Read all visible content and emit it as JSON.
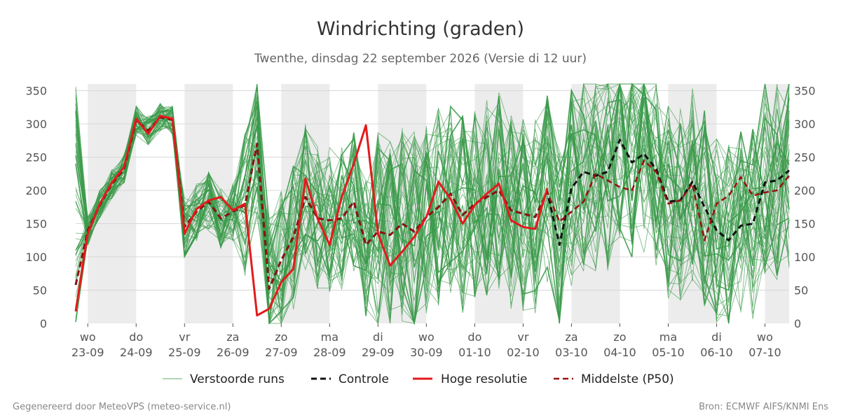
{
  "title": "Windrichting (graden)",
  "subtitle": "Twenthe, dinsdag 22 september 2026 (Versie di 12 uur)",
  "footer": {
    "left": "Gegenereerd door MeteoVPS (meteo-service.nl)",
    "right": "Bron: ECMWF AIFS/KNMI Ens"
  },
  "legend": [
    {
      "label": "Verstoorde runs",
      "style": "thin-solid",
      "color": "#3a9a4a"
    },
    {
      "label": "Controle",
      "style": "dashed",
      "color": "#111111"
    },
    {
      "label": "Hoge resolutie",
      "style": "solid",
      "color": "#e31a1c"
    },
    {
      "label": "Middelste (P50)",
      "style": "dashed",
      "color": "#9b1010"
    }
  ],
  "chart_data": {
    "type": "line",
    "title": "Windrichting (graden)",
    "x_unit": "days from 23-09 00:00",
    "xlim": [
      -0.25,
      14.5
    ],
    "ylim": [
      0,
      360
    ],
    "yticks": [
      0,
      50,
      100,
      150,
      200,
      250,
      300,
      350
    ],
    "grid": true,
    "weekend_shading": [
      [
        0,
        1
      ],
      [
        2,
        3
      ],
      [
        4,
        5
      ],
      [
        6,
        7
      ],
      [
        8,
        9
      ],
      [
        10,
        11
      ],
      [
        12,
        13
      ],
      [
        14,
        14.5
      ]
    ],
    "x_ticks": [
      {
        "day": "wo",
        "date": "23-09"
      },
      {
        "day": "do",
        "date": "24-09"
      },
      {
        "day": "vr",
        "date": "25-09"
      },
      {
        "day": "za",
        "date": "26-09"
      },
      {
        "day": "zo",
        "date": "27-09"
      },
      {
        "day": "ma",
        "date": "28-09"
      },
      {
        "day": "di",
        "date": "29-09"
      },
      {
        "day": "wo",
        "date": "30-09"
      },
      {
        "day": "do",
        "date": "01-10"
      },
      {
        "day": "vr",
        "date": "02-10"
      },
      {
        "day": "za",
        "date": "03-10"
      },
      {
        "day": "zo",
        "date": "04-10"
      },
      {
        "day": "ma",
        "date": "05-10"
      },
      {
        "day": "di",
        "date": "06-10"
      },
      {
        "day": "wo",
        "date": "07-10"
      }
    ],
    "series": [
      {
        "name": "Hoge resolutie",
        "x": [
          -0.25,
          0,
          0.25,
          0.5,
          0.75,
          1,
          1.25,
          1.5,
          1.75,
          2,
          2.25,
          2.5,
          2.75,
          3,
          3.25,
          3.5,
          3.75,
          4,
          4.25,
          4.5,
          4.75,
          5,
          5.25,
          5.5,
          5.75,
          6,
          6.25,
          6.5,
          6.75,
          7,
          7.25,
          7.5,
          7.75,
          8,
          8.25,
          8.5,
          8.75,
          9,
          9.25,
          9.5
        ],
        "y": [
          18,
          135,
          180,
          212,
          235,
          308,
          285,
          312,
          308,
          135,
          172,
          185,
          190,
          170,
          180,
          12,
          22,
          62,
          82,
          218,
          158,
          118,
          190,
          240,
          298,
          135,
          87,
          108,
          130,
          160,
          213,
          187,
          150,
          178,
          195,
          210,
          155,
          145,
          142,
          203
        ]
      },
      {
        "name": "Controle",
        "x": [
          -0.25,
          0,
          0.25,
          0.5,
          0.75,
          1,
          1.25,
          1.5,
          1.75,
          2,
          2.25,
          2.5,
          2.75,
          3,
          3.25,
          3.5,
          3.75,
          4,
          4.25,
          4.5,
          4.75,
          5,
          5.25,
          5.5,
          5.75,
          6,
          6.25,
          6.5,
          6.75,
          7,
          7.25,
          7.5,
          7.75,
          8,
          8.25,
          8.5,
          8.75,
          9,
          9.25,
          9.5,
          9.75,
          10,
          10.25,
          10.5,
          10.75,
          11,
          11.25,
          11.5,
          11.75,
          12,
          12.25,
          12.5,
          12.75,
          13,
          13.25,
          13.5,
          13.75,
          14,
          14.25,
          14.5
        ],
        "y": [
          58,
          140,
          178,
          210,
          232,
          305,
          290,
          310,
          306,
          145,
          168,
          183,
          158,
          168,
          178,
          270,
          52,
          95,
          130,
          190,
          158,
          155,
          158,
          183,
          118,
          138,
          133,
          150,
          138,
          160,
          175,
          195,
          163,
          180,
          190,
          200,
          170,
          165,
          160,
          198,
          118,
          203,
          228,
          222,
          228,
          276,
          242,
          255,
          232,
          183,
          185,
          213,
          175,
          140,
          125,
          147,
          150,
          212,
          215,
          230
        ]
      },
      {
        "name": "Middelste (P50)",
        "x": [
          -0.25,
          0,
          0.25,
          0.5,
          0.75,
          1,
          1.25,
          1.5,
          1.75,
          2,
          2.25,
          2.5,
          2.75,
          3,
          3.25,
          3.5,
          3.75,
          4,
          4.25,
          4.5,
          4.75,
          5,
          5.25,
          5.5,
          5.75,
          6,
          6.25,
          6.5,
          6.75,
          7,
          7.25,
          7.5,
          7.75,
          8,
          8.25,
          8.5,
          8.75,
          9,
          9.25,
          9.5,
          9.75,
          10,
          10.25,
          10.5,
          10.75,
          11,
          11.25,
          11.5,
          11.75,
          12,
          12.25,
          12.5,
          12.75,
          13,
          13.25,
          13.5,
          13.75,
          14,
          14.25,
          14.5
        ],
        "y": [
          58,
          140,
          178,
          210,
          232,
          305,
          290,
          310,
          306,
          145,
          168,
          183,
          158,
          168,
          178,
          270,
          52,
          95,
          130,
          190,
          158,
          155,
          158,
          183,
          118,
          138,
          133,
          150,
          138,
          160,
          175,
          195,
          163,
          180,
          190,
          200,
          170,
          165,
          160,
          198,
          153,
          168,
          183,
          225,
          215,
          205,
          200,
          245,
          228,
          180,
          185,
          210,
          125,
          180,
          192,
          220,
          192,
          197,
          200,
          222
        ]
      }
    ],
    "ensemble": {
      "name": "Verstoorde runs",
      "count": 50,
      "x_step": 0.25,
      "x_start": -0.25,
      "x_end": 14.5,
      "note_range_early": [
        0,
        360
      ],
      "typical_range": [
        20,
        360
      ]
    }
  }
}
